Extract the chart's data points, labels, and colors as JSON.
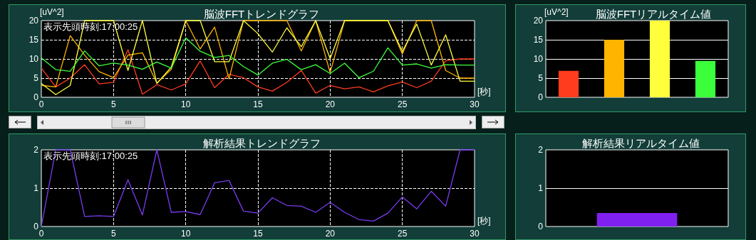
{
  "chart_data": [
    {
      "type": "line",
      "title": "脳波FFTトレンドグラフ",
      "ylabel": "[uV^2]",
      "xlabel": "[秒]",
      "annotations": [
        "表示先頭時刻:17:00:25"
      ],
      "marker": "none",
      "grid": true,
      "x": [
        0,
        1,
        2,
        3,
        4,
        5,
        6,
        7,
        8,
        9,
        10,
        11,
        12,
        13,
        14,
        15,
        16,
        17,
        18,
        19,
        20,
        21,
        22,
        23,
        24,
        25,
        26,
        27,
        28,
        29,
        30
      ],
      "xlim": [
        0,
        30
      ],
      "xticks": [
        0,
        5,
        10,
        15,
        20,
        25,
        30
      ],
      "ylim": [
        0,
        20
      ],
      "yticks": [
        0,
        5,
        10,
        15,
        20
      ],
      "series": [
        {
          "color": "#ff3c1e",
          "values": [
            7.6,
            2.7,
            5,
            8.5,
            3.5,
            3.9,
            12.4,
            0.8,
            3.3,
            1.9,
            3.5,
            9.5,
            2.5,
            6,
            5.1,
            2.7,
            1.6,
            3.9,
            7,
            1.1,
            3.1,
            2.2,
            2.7,
            1.4,
            3,
            4,
            2.5,
            4.2,
            9.5,
            10,
            10
          ]
        },
        {
          "color": "#ffb400",
          "values": [
            3.1,
            2.7,
            16.1,
            11,
            6.7,
            5.1,
            11,
            11.6,
            3.7,
            7.3,
            20,
            12.6,
            18.3,
            4.8,
            20,
            20,
            20,
            20,
            12.1,
            20,
            6.4,
            20,
            20,
            20,
            20,
            11.3,
            20,
            20,
            7,
            5,
            5
          ]
        },
        {
          "color": "#ffff3c",
          "values": [
            3.6,
            0.7,
            3.1,
            20,
            20,
            20,
            7,
            20,
            3.6,
            7.9,
            20,
            20,
            9.3,
            9.3,
            20,
            16.6,
            11.8,
            18.1,
            13.2,
            20,
            10.1,
            20,
            20,
            20,
            20,
            12,
            19.1,
            8.4,
            16.3,
            4.2,
            4.2
          ]
        },
        {
          "color": "#3cff3c",
          "values": [
            10.3,
            7.2,
            6.8,
            12.1,
            8.2,
            8.9,
            8.4,
            7.3,
            9.2,
            7.6,
            15.5,
            12,
            10.4,
            10.9,
            8,
            5.8,
            8.9,
            9.9,
            7.2,
            8.5,
            6.2,
            8.9,
            5.1,
            6.8,
            12.9,
            8.4,
            8.7,
            7.6,
            8.5,
            8.4,
            8.4
          ]
        }
      ]
    },
    {
      "type": "bar",
      "title": "脳波FFTリアルタイム値",
      "ylabel": "[uV^2]",
      "grid": "y",
      "categories": [
        null,
        null,
        null,
        null
      ],
      "values": [
        6.9,
        15,
        20,
        9.5
      ],
      "colors": [
        "#ff3c1e",
        "#ffb400",
        "#ffff3c",
        "#3cff3c"
      ],
      "ylim": [
        0,
        20
      ],
      "yticks": [
        0,
        5,
        10,
        15,
        20
      ]
    },
    {
      "type": "line",
      "title": "解析結果トレンドグラフ",
      "xlabel": "[秒]",
      "annotations": [
        "表示先頭時刻:17:00:25"
      ],
      "marker": "none",
      "grid": true,
      "x": [
        0,
        1,
        2,
        3,
        4,
        5,
        6,
        7,
        8,
        9,
        10,
        11,
        12,
        13,
        14,
        15,
        16,
        17,
        18,
        19,
        20,
        21,
        22,
        23,
        24,
        25,
        26,
        27,
        28,
        29,
        30
      ],
      "xlim": [
        0,
        30
      ],
      "xticks": [
        0,
        5,
        10,
        15,
        20,
        25,
        30
      ],
      "ylim": [
        0,
        2
      ],
      "yticks": [
        0,
        1,
        2
      ],
      "series": [
        {
          "color": "#7a3cf0",
          "values": [
            0,
            2,
            2,
            0.26,
            0.28,
            0.26,
            1.22,
            0.3,
            2,
            0.37,
            0.39,
            0.31,
            1.14,
            1.2,
            0.4,
            0.35,
            0.75,
            0.55,
            0.53,
            0.37,
            0.63,
            0.37,
            0.18,
            0.14,
            0.35,
            0.77,
            0.46,
            0.92,
            0.53,
            2,
            2
          ]
        }
      ]
    },
    {
      "type": "bar",
      "title": "解析結果リアルタイム値",
      "grid": "y",
      "categories": [
        null
      ],
      "values": [
        0.35
      ],
      "colors": [
        "#8020f0"
      ],
      "ylim": [
        0,
        2
      ],
      "yticks": [
        0,
        1,
        2
      ]
    }
  ]
}
